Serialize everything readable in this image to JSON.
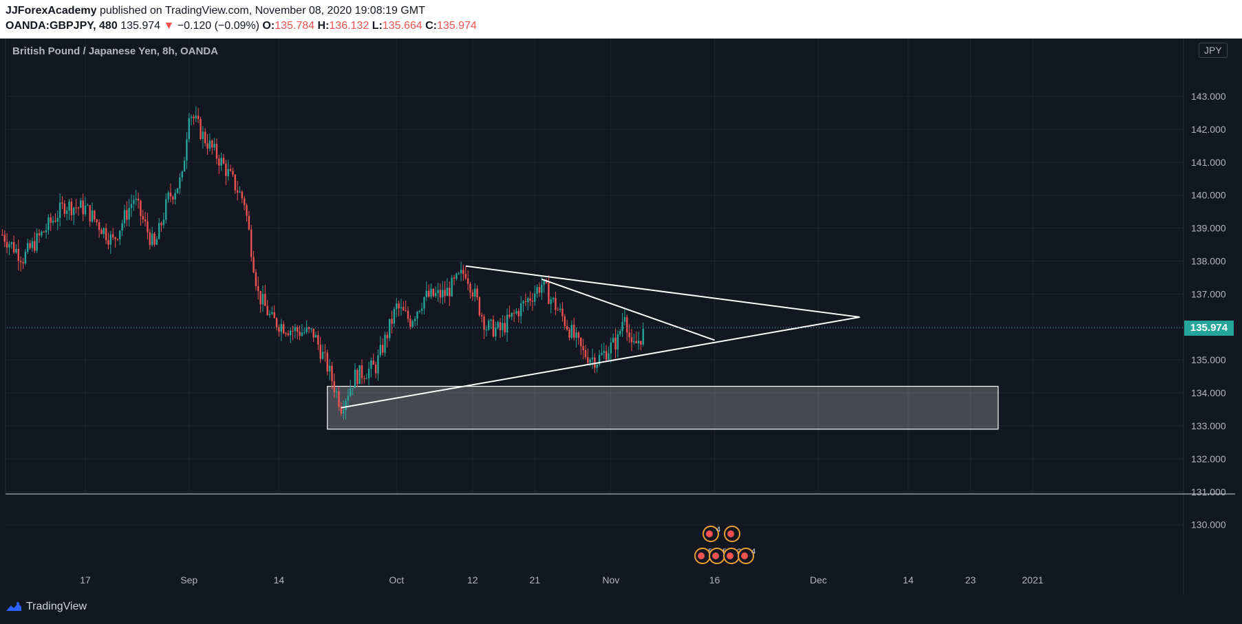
{
  "header": {
    "publisher": "JJForexAcademy",
    "published_text": " published on TradingView.com, November 08, 2020 19:08:19 GMT",
    "symbol": "OANDA:GBPJPY, 480",
    "last": "135.974",
    "change": "−0.120 (−0.09%)",
    "o_label": "O:",
    "o": "135.784",
    "h_label": "H:",
    "h": "136.132",
    "l_label": "L:",
    "l": "135.664",
    "c_label": "C:",
    "c": "135.974"
  },
  "chart_title": "British Pound / Japanese Yen, 8h, OANDA",
  "currency": "JPY",
  "price_tag": "135.974",
  "footer": {
    "brand": "TradingView"
  },
  "colors": {
    "up": "#26a69a",
    "down": "#ef5350",
    "bg": "#131722",
    "grid": "#1f2430",
    "drawing": "#ffffff"
  },
  "chart_data": {
    "type": "candlestick",
    "title": "British Pound / Japanese Yen, 8h, OANDA",
    "y_ticks": [
      "143.000",
      "142.000",
      "141.000",
      "140.000",
      "139.000",
      "138.000",
      "137.000",
      "136.000",
      "135.000",
      "134.000",
      "133.000",
      "132.000",
      "131.000",
      "130.000"
    ],
    "ylim": [
      129.7,
      143.7
    ],
    "x_ticks": [
      {
        "label": "17",
        "date": "2020-08-17"
      },
      {
        "label": "Sep",
        "date": "2020-09-01"
      },
      {
        "label": "14",
        "date": "2020-09-14"
      },
      {
        "label": "Oct",
        "date": "2020-10-01"
      },
      {
        "label": "12",
        "date": "2020-10-12"
      },
      {
        "label": "21",
        "date": "2020-10-21"
      },
      {
        "label": "Nov",
        "date": "2020-11-01"
      },
      {
        "label": "16",
        "date": "2020-11-16"
      },
      {
        "label": "Dec",
        "date": "2020-12-01"
      },
      {
        "label": "14",
        "date": "2020-12-14"
      },
      {
        "label": "23",
        "date": "2020-12-23"
      },
      {
        "label": "2021",
        "date": "2021-01-01"
      }
    ],
    "last_price": 135.974,
    "anchors": [
      {
        "t": "2020-08-05",
        "p": 138.8
      },
      {
        "t": "2020-08-08",
        "p": 138.1
      },
      {
        "t": "2020-08-14",
        "p": 139.7
      },
      {
        "t": "2020-08-17",
        "p": 139.6
      },
      {
        "t": "2020-08-21",
        "p": 138.6
      },
      {
        "t": "2020-08-24",
        "p": 139.9
      },
      {
        "t": "2020-08-27",
        "p": 138.4
      },
      {
        "t": "2020-08-29",
        "p": 139.9
      },
      {
        "t": "2020-08-31",
        "p": 140.5
      },
      {
        "t": "2020-09-01",
        "p": 142.6
      },
      {
        "t": "2020-09-03",
        "p": 141.8
      },
      {
        "t": "2020-09-06",
        "p": 140.9
      },
      {
        "t": "2020-09-09",
        "p": 139.8
      },
      {
        "t": "2020-09-11",
        "p": 137.0
      },
      {
        "t": "2020-09-13",
        "p": 136.2
      },
      {
        "t": "2020-09-16",
        "p": 135.9
      },
      {
        "t": "2020-09-19",
        "p": 135.8
      },
      {
        "t": "2020-09-21",
        "p": 134.8
      },
      {
        "t": "2020-09-23",
        "p": 133.6
      },
      {
        "t": "2020-09-25",
        "p": 134.5
      },
      {
        "t": "2020-09-28",
        "p": 134.8
      },
      {
        "t": "2020-10-01",
        "p": 136.6
      },
      {
        "t": "2020-10-03",
        "p": 136.2
      },
      {
        "t": "2020-10-05",
        "p": 136.9
      },
      {
        "t": "2020-10-08",
        "p": 137.0
      },
      {
        "t": "2020-10-11",
        "p": 137.7
      },
      {
        "t": "2020-10-14",
        "p": 136.0
      },
      {
        "t": "2020-10-16",
        "p": 135.9
      },
      {
        "t": "2020-10-19",
        "p": 136.6
      },
      {
        "t": "2020-10-22",
        "p": 137.3
      },
      {
        "t": "2020-10-25",
        "p": 136.3
      },
      {
        "t": "2020-10-28",
        "p": 135.2
      },
      {
        "t": "2020-10-30",
        "p": 135.0
      },
      {
        "t": "2020-11-02",
        "p": 135.6
      },
      {
        "t": "2020-11-03",
        "p": 136.5
      },
      {
        "t": "2020-11-04",
        "p": 135.3
      },
      {
        "t": "2020-11-06",
        "p": 135.9
      }
    ]
  },
  "drawings": {
    "zone": {
      "t1": "2020-09-21",
      "t2": "2020-12-27",
      "p_top": 134.2,
      "p_bottom": 132.9
    },
    "lines": [
      {
        "name": "support",
        "t1": "2020-09-23",
        "p1": 133.55,
        "t2": "2020-12-07",
        "p2": 136.3
      },
      {
        "name": "resistance-major",
        "t1": "2020-10-11",
        "p1": 137.85,
        "t2": "2020-12-07",
        "p2": 136.3
      },
      {
        "name": "resistance-minor",
        "t1": "2020-10-22",
        "p1": 137.45,
        "t2": "2020-11-16",
        "p2": 135.6
      }
    ]
  },
  "event_markers": [
    {
      "row": "top",
      "count": "4"
    },
    {
      "row": "mid",
      "counts": [
        "5",
        "5",
        "2",
        "4"
      ]
    }
  ]
}
